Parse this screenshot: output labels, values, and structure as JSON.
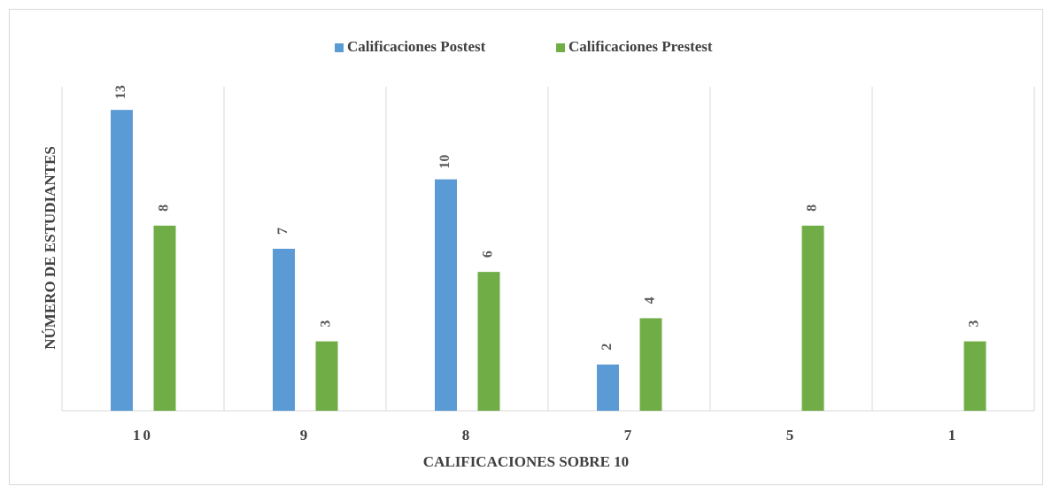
{
  "chart_data": {
    "type": "bar",
    "x_label": "CALIFICACIONES SOBRE 10",
    "y_label": "NÚMERO DE ESTUDIANTES",
    "categories": [
      "10",
      "9",
      "8",
      "7",
      "5",
      "1"
    ],
    "series": [
      {
        "name": "Calificaciones Postest",
        "color": "#5b9bd5",
        "values": [
          13,
          7,
          10,
          2,
          null,
          null
        ]
      },
      {
        "name": "Calificaciones Prestest",
        "color": "#70ad47",
        "values": [
          8,
          3,
          6,
          4,
          8,
          3
        ]
      }
    ],
    "ylim": [
      0,
      14
    ],
    "grid": true,
    "legend": "top"
  }
}
